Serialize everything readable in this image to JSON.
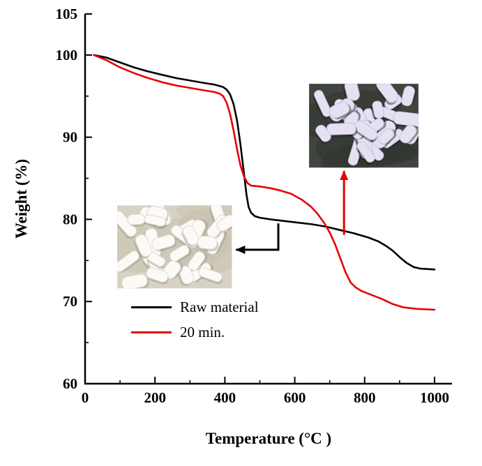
{
  "chart_data": {
    "type": "line",
    "title": "",
    "xlabel": "Temperature (°C )",
    "ylabel": "Weight (%)",
    "xlim": [
      0,
      1050
    ],
    "ylim": [
      60,
      105
    ],
    "x_major_ticks": [
      0,
      200,
      400,
      600,
      800,
      1000
    ],
    "x_minor_ticks": [
      100,
      300,
      500,
      700,
      900
    ],
    "y_major_ticks": [
      60,
      70,
      80,
      90,
      100,
      105
    ],
    "y_minor_ticks": [
      65,
      75,
      85,
      95
    ],
    "grid": false,
    "legend_position": "lower-left-inside",
    "series": [
      {
        "name": "Raw material",
        "color": "#000000",
        "x": [
          25,
          60,
          100,
          140,
          180,
          220,
          260,
          300,
          340,
          370,
          395,
          405,
          415,
          425,
          435,
          445,
          455,
          462,
          468,
          475,
          485,
          500,
          530,
          570,
          610,
          650,
          690,
          730,
          770,
          810,
          840,
          860,
          880,
          900,
          920,
          940,
          960,
          1000
        ],
        "y": [
          100,
          99.7,
          99.1,
          98.5,
          98,
          97.6,
          97.2,
          96.9,
          96.6,
          96.4,
          96.1,
          95.8,
          95.2,
          94,
          92,
          89,
          85.5,
          83,
          81.5,
          80.8,
          80.4,
          80.2,
          80,
          79.8,
          79.6,
          79.4,
          79.1,
          78.7,
          78.3,
          77.8,
          77.3,
          76.8,
          76.2,
          75.4,
          74.7,
          74.2,
          74,
          73.9
        ]
      },
      {
        "name": "20 min.",
        "color": "#e60000",
        "x": [
          25,
          60,
          100,
          140,
          180,
          220,
          260,
          300,
          340,
          370,
          385,
          395,
          405,
          415,
          425,
          435,
          445,
          455,
          465,
          475,
          500,
          530,
          560,
          590,
          620,
          645,
          665,
          685,
          700,
          715,
          730,
          745,
          760,
          775,
          790,
          820,
          850,
          880,
          910,
          950,
          1000
        ],
        "y": [
          100,
          99.4,
          98.5,
          97.8,
          97.2,
          96.7,
          96.3,
          96,
          95.7,
          95.5,
          95.3,
          95,
          94.2,
          92.8,
          90.8,
          88.5,
          86.5,
          85.2,
          84.4,
          84.1,
          84,
          83.8,
          83.5,
          83.1,
          82.4,
          81.6,
          80.7,
          79.5,
          78.4,
          77,
          75.3,
          73.6,
          72.3,
          71.7,
          71.3,
          70.8,
          70.3,
          69.7,
          69.3,
          69.1,
          69
        ]
      }
    ],
    "annotations": {
      "photos": [
        {
          "name": "raw-material-photo",
          "description": "white pellets on beige background",
          "bg_color": "#d8d2c6",
          "bg_shade": "#c6bfae",
          "pellet_color": "#fbfaf6",
          "pellet_edge": "#dedacd",
          "shadow_color": "#9a9384",
          "x0": 92,
          "x1": 420,
          "y0": 71.6,
          "y1": 81.7
        },
        {
          "name": "treated-sample-photo",
          "description": "light purple pellets on dark background",
          "bg_color": "#41453f",
          "bg_shade": "#2f332e",
          "pellet_color": "#e6e1f2",
          "pellet_edge": "#c8c0e2",
          "shadow_color": "#1c1f1b",
          "x0": 641,
          "x1": 954,
          "y0": 86.3,
          "y1": 96.5
        }
      ],
      "arrows": [
        {
          "name": "raw-material-arrow",
          "color": "#000000",
          "points": [
            [
              553,
              79.5
            ],
            [
              553,
              76.3
            ],
            [
              432,
              76.3
            ]
          ]
        },
        {
          "name": "treated-sample-arrow",
          "color": "#e60000",
          "points": [
            [
              741,
              78.1
            ],
            [
              741,
              85.9
            ]
          ]
        }
      ]
    }
  }
}
